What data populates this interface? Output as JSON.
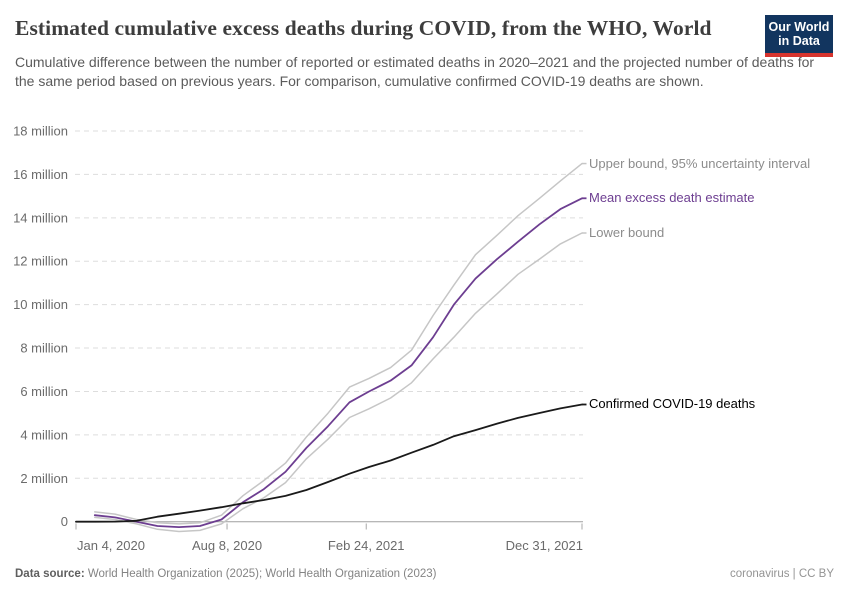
{
  "header": {
    "title": "Estimated cumulative excess deaths during COVID, from the WHO, World",
    "subtitle": "Cumulative difference between the number of reported or estimated deaths in 2020–2021 and the projected number of deaths for the same period based on previous years. For comparison, cumulative confirmed COVID-19 deaths are shown.",
    "logo_line1": "Our World",
    "logo_line2": "in Data"
  },
  "footer": {
    "source_label": "Data source:",
    "source_text": "World Health Organization (2025); World Health Organization (2023)",
    "license": "coronavirus | CC BY"
  },
  "colors": {
    "accent_purple": "#6d3e91",
    "bound_gray": "#c6c6c6",
    "confirmed_black": "#1a1a1a",
    "grid": "#dddddd",
    "zero_line": "#9f9f9f",
    "tick_text": "#6b6b6b",
    "logo_navy": "#12355f",
    "logo_red": "#d7342e"
  },
  "chart_data": {
    "type": "line",
    "title": "Estimated cumulative excess deaths during COVID, from the WHO, World",
    "unit": "deaths (millions)",
    "grid": "horizontal dashed",
    "legend_position": "right edge line labels",
    "y_axis": {
      "range": [
        -0.6,
        18
      ],
      "ticks": [
        {
          "v": 0,
          "label": "0"
        },
        {
          "v": 2,
          "label": "2 million"
        },
        {
          "v": 4,
          "label": "4 million"
        },
        {
          "v": 6,
          "label": "6 million"
        },
        {
          "v": 8,
          "label": "8 million"
        },
        {
          "v": 10,
          "label": "10 million"
        },
        {
          "v": 12,
          "label": "12 million"
        },
        {
          "v": 14,
          "label": "14 million"
        },
        {
          "v": 16,
          "label": "16 million"
        },
        {
          "v": 18,
          "label": "18 million"
        }
      ]
    },
    "x_axis": {
      "domain_days": [
        0,
        727
      ],
      "ticks": [
        {
          "day": 0,
          "label": "Jan 4, 2020",
          "align": "start"
        },
        {
          "day": 217,
          "label": "Aug 8, 2020",
          "align": "middle"
        },
        {
          "day": 417,
          "label": "Feb 24, 2021",
          "align": "middle"
        },
        {
          "day": 727,
          "label": "Dec 31, 2021",
          "align": "end"
        }
      ]
    },
    "dates_monthly": [
      "Jan 31, 2020",
      "Feb 29, 2020",
      "Mar 31, 2020",
      "Apr 30, 2020",
      "May 31, 2020",
      "Jun 30, 2020",
      "Jul 31, 2020",
      "Aug 31, 2020",
      "Sep 30, 2020",
      "Oct 31, 2020",
      "Nov 30, 2020",
      "Dec 31, 2020",
      "Jan 31, 2021",
      "Feb 28, 2021",
      "Mar 31, 2021",
      "Apr 30, 2021",
      "May 31, 2021",
      "Jun 30, 2021",
      "Jul 31, 2021",
      "Aug 31, 2021",
      "Sep 30, 2021",
      "Oct 31, 2021",
      "Nov 30, 2021",
      "Dec 31, 2021"
    ],
    "series": [
      {
        "name": "Upper bound, 95% uncertainty interval",
        "slug": "upper-bound",
        "color": "#c6c6c6",
        "label_color": "#8c8c8c",
        "width": 1.5,
        "days": [
          27,
          56,
          87,
          117,
          148,
          178,
          209,
          240,
          270,
          301,
          331,
          362,
          393,
          421,
          452,
          482,
          513,
          543,
          574,
          605,
          635,
          666,
          696,
          727
        ],
        "values_millions": [
          0.45,
          0.35,
          0.1,
          -0.05,
          -0.1,
          -0.05,
          0.3,
          1.2,
          1.9,
          2.7,
          3.9,
          5.0,
          6.2,
          6.6,
          7.1,
          7.9,
          9.5,
          10.9,
          12.3,
          13.2,
          14.1,
          14.9,
          15.7,
          16.5
        ]
      },
      {
        "name": "Lower bound",
        "slug": "lower-bound",
        "color": "#c6c6c6",
        "label_color": "#8c8c8c",
        "width": 1.5,
        "days": [
          27,
          56,
          87,
          117,
          148,
          178,
          209,
          240,
          270,
          301,
          331,
          362,
          393,
          421,
          452,
          482,
          513,
          543,
          574,
          605,
          635,
          666,
          696,
          727
        ],
        "values_millions": [
          0.2,
          0.1,
          -0.1,
          -0.35,
          -0.45,
          -0.4,
          -0.1,
          0.6,
          1.1,
          1.8,
          2.9,
          3.8,
          4.8,
          5.2,
          5.7,
          6.4,
          7.5,
          8.5,
          9.6,
          10.5,
          11.4,
          12.1,
          12.8,
          13.3
        ]
      },
      {
        "name": "Mean excess death estimate",
        "slug": "mean-excess-death-estimate",
        "color": "#6d3e91",
        "label_color": "#6d3e91",
        "width": 1.8,
        "days": [
          27,
          56,
          87,
          117,
          148,
          178,
          209,
          240,
          270,
          301,
          331,
          362,
          393,
          421,
          452,
          482,
          513,
          543,
          574,
          605,
          635,
          666,
          696,
          727
        ],
        "values_millions": [
          0.3,
          0.2,
          0.0,
          -0.2,
          -0.25,
          -0.2,
          0.1,
          0.9,
          1.5,
          2.3,
          3.4,
          4.4,
          5.5,
          6.0,
          6.5,
          7.2,
          8.5,
          10.0,
          11.2,
          12.1,
          12.9,
          13.7,
          14.4,
          14.9
        ]
      },
      {
        "name": "Confirmed COVID-19 deaths",
        "slug": "confirmed-covid-19-deaths",
        "color": "#1a1a1a",
        "label_color": "#000000",
        "width": 1.8,
        "days": [
          0,
          27,
          56,
          87,
          117,
          148,
          178,
          209,
          240,
          270,
          301,
          331,
          362,
          393,
          421,
          452,
          482,
          513,
          543,
          574,
          605,
          635,
          666,
          696,
          727
        ],
        "values_millions": [
          0,
          0.002,
          0.003,
          0.04,
          0.23,
          0.37,
          0.51,
          0.67,
          0.85,
          1.0,
          1.19,
          1.46,
          1.83,
          2.21,
          2.52,
          2.82,
          3.18,
          3.54,
          3.94,
          4.22,
          4.52,
          4.78,
          5.01,
          5.22,
          5.4
        ]
      }
    ]
  }
}
